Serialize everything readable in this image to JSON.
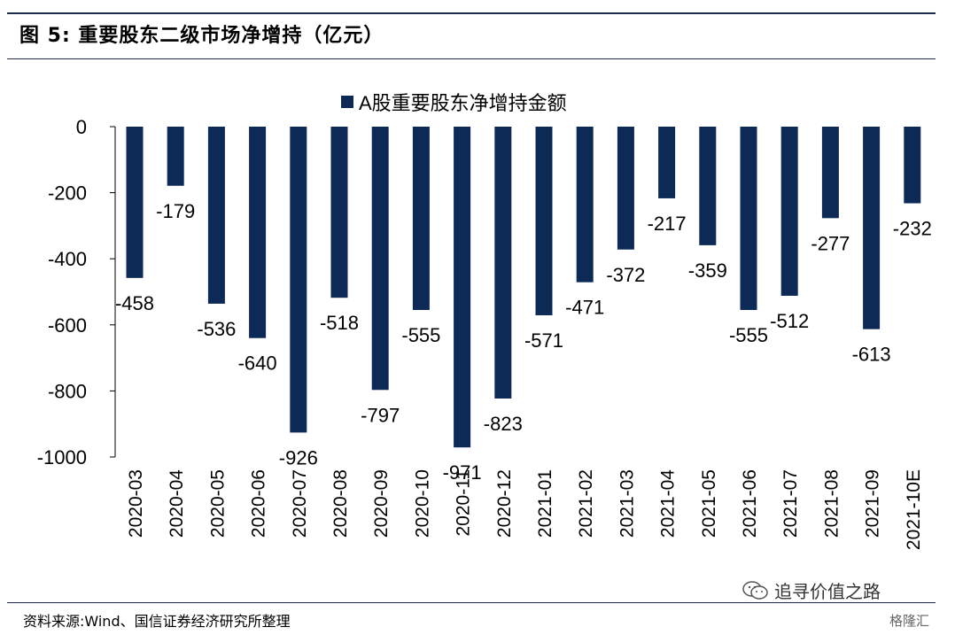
{
  "header": {
    "title": "图 5:  重要股东二级市场净增持（亿元）"
  },
  "footer": {
    "source": "资料来源:Wind、国信证券经济研究所整理",
    "watermark": "追寻价值之路",
    "watermark_brand": "格隆汇"
  },
  "colors": {
    "bar": "#0d2a57",
    "rule": "#1f2d4d"
  },
  "chart_data": {
    "type": "bar",
    "categories": [
      "2020-03",
      "2020-04",
      "2020-05",
      "2020-06",
      "2020-07",
      "2020-08",
      "2020-09",
      "2020-10",
      "2020-11",
      "2020-12",
      "2021-01",
      "2021-02",
      "2021-03",
      "2021-04",
      "2021-05",
      "2021-06",
      "2021-07",
      "2021-08",
      "2021-09",
      "2021-10E"
    ],
    "series": [
      {
        "name": "A股重要股东净增持金额",
        "values": [
          -458,
          -179,
          -536,
          -640,
          -926,
          -518,
          -797,
          -555,
          -971,
          -823,
          -571,
          -471,
          -372,
          -217,
          -359,
          -555,
          -512,
          -277,
          -613,
          -232
        ]
      }
    ],
    "ylim": [
      -1000,
      0
    ],
    "yticks": [
      0,
      -200,
      -400,
      -600,
      -800,
      -1000
    ],
    "legend": "top-center",
    "grid": false
  }
}
